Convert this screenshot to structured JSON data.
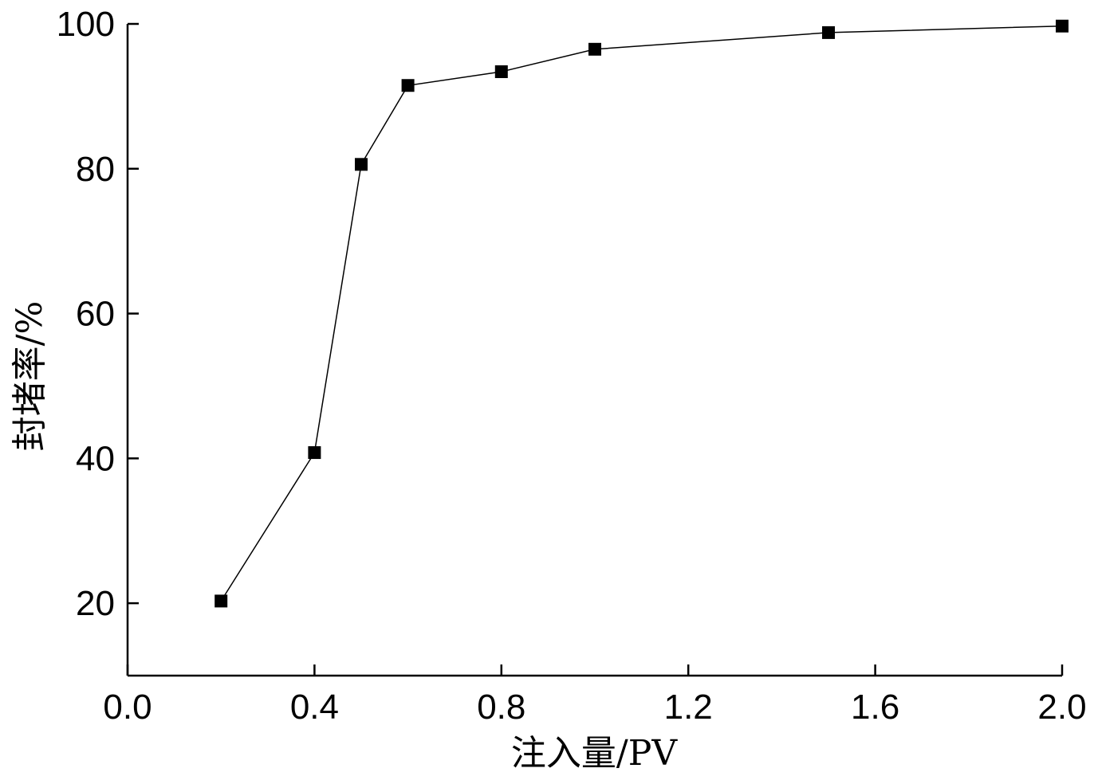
{
  "chart_data": {
    "type": "line",
    "title": "",
    "xlabel": "注入量/PV",
    "ylabel": "封堵率/%",
    "xlim": [
      0.0,
      2.0
    ],
    "ylim": [
      10,
      100
    ],
    "xticks": [
      0.0,
      0.4,
      0.8,
      1.2,
      1.6,
      2.0
    ],
    "xtick_labels": [
      "0.0",
      "0.4",
      "0.8",
      "1.2",
      "1.6",
      "2.0"
    ],
    "yticks": [
      20,
      40,
      60,
      80,
      100
    ],
    "ytick_labels": [
      "20",
      "40",
      "60",
      "80",
      "100"
    ],
    "grid": false,
    "legend": "none",
    "marker": "square",
    "colors": {
      "line": "#000000",
      "marker": "#000000",
      "axis": "#000000"
    },
    "series": [
      {
        "x": [
          0.2,
          0.4,
          0.5,
          0.6,
          0.8,
          1.0,
          1.5,
          2.0
        ],
        "y": [
          20.3,
          40.8,
          80.6,
          91.5,
          93.4,
          96.5,
          98.8,
          99.7
        ]
      }
    ]
  }
}
